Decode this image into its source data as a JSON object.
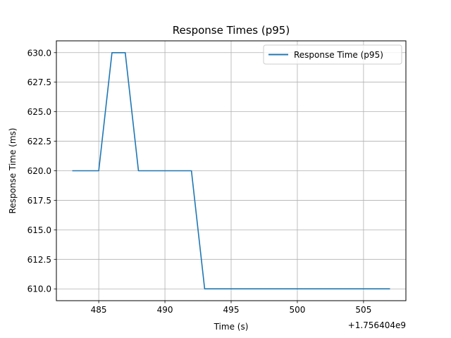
{
  "chart_data": {
    "type": "line",
    "title": "Response Times (p95)",
    "xlabel": "Time (s)",
    "ylabel": "Response Time (ms)",
    "x_offset_label": "+1.756404e9",
    "xlim": [
      481.8,
      508.2
    ],
    "ylim": [
      609.0,
      631.0
    ],
    "x_ticks": [
      485,
      490,
      495,
      500,
      505
    ],
    "y_ticks": [
      610.0,
      612.5,
      615.0,
      617.5,
      620.0,
      622.5,
      625.0,
      627.5,
      630.0
    ],
    "x_tick_labels": [
      "485",
      "490",
      "495",
      "500",
      "505"
    ],
    "y_tick_labels": [
      "610.0",
      "612.5",
      "615.0",
      "617.5",
      "620.0",
      "622.5",
      "625.0",
      "627.5",
      "630.0"
    ],
    "grid": true,
    "legend_position": "top-right",
    "series": [
      {
        "name": "Response Time (p95)",
        "color": "#1f77b4",
        "x": [
          483,
          484,
          485,
          486,
          487,
          488,
          489,
          490,
          491,
          492,
          493,
          494,
          495,
          496,
          497,
          498,
          499,
          500,
          501,
          502,
          503,
          504,
          505,
          506,
          507
        ],
        "y": [
          620,
          620,
          620,
          630,
          630,
          620,
          620,
          620,
          620,
          620,
          610,
          610,
          610,
          610,
          610,
          610,
          610,
          610,
          610,
          610,
          610,
          610,
          610,
          610,
          610
        ]
      }
    ]
  }
}
